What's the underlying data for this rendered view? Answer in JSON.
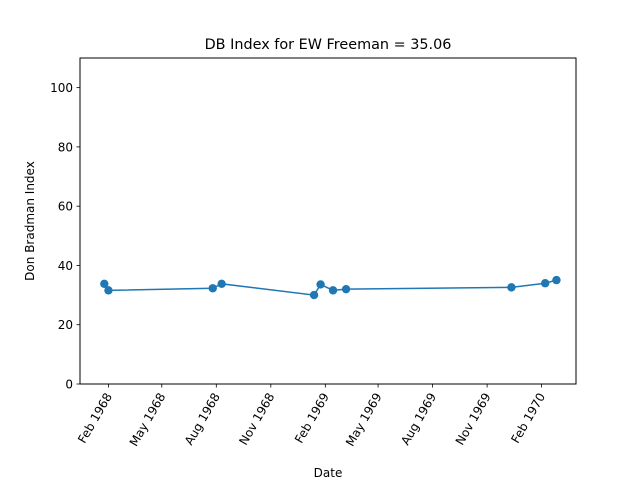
{
  "chart_data": {
    "type": "line",
    "title": "DB Index for EW Freeman = 35.06",
    "xlabel": "Date",
    "ylabel": "Don Bradman Index",
    "xlim": [
      "1967-12-15",
      "1970-03-31"
    ],
    "ylim": [
      0,
      110
    ],
    "yticks": [
      0,
      20,
      40,
      60,
      80,
      100
    ],
    "xticks": [
      {
        "date": "1968-02-01",
        "label": "Feb 1968"
      },
      {
        "date": "1968-05-01",
        "label": "May 1968"
      },
      {
        "date": "1968-08-01",
        "label": "Aug 1968"
      },
      {
        "date": "1968-11-01",
        "label": "Nov 1968"
      },
      {
        "date": "1969-02-01",
        "label": "Feb 1969"
      },
      {
        "date": "1969-05-01",
        "label": "May 1969"
      },
      {
        "date": "1969-08-01",
        "label": "Aug 1969"
      },
      {
        "date": "1969-11-01",
        "label": "Nov 1969"
      },
      {
        "date": "1970-02-01",
        "label": "Feb 1970"
      }
    ],
    "grid": false,
    "series": [
      {
        "name": "",
        "color": "#1f77b4",
        "marker": "circle",
        "points": [
          {
            "x": "1968-01-25",
            "y": 33.8
          },
          {
            "x": "1968-02-01",
            "y": 31.6
          },
          {
            "x": "1968-07-26",
            "y": 32.3
          },
          {
            "x": "1968-08-10",
            "y": 33.8
          },
          {
            "x": "1969-01-13",
            "y": 30.0
          },
          {
            "x": "1969-01-24",
            "y": 33.6
          },
          {
            "x": "1969-02-14",
            "y": 31.6
          },
          {
            "x": "1969-03-08",
            "y": 32.0
          },
          {
            "x": "1969-12-12",
            "y": 32.6
          },
          {
            "x": "1970-02-07",
            "y": 34.0
          },
          {
            "x": "1970-02-26",
            "y": 35.06
          }
        ]
      }
    ]
  }
}
